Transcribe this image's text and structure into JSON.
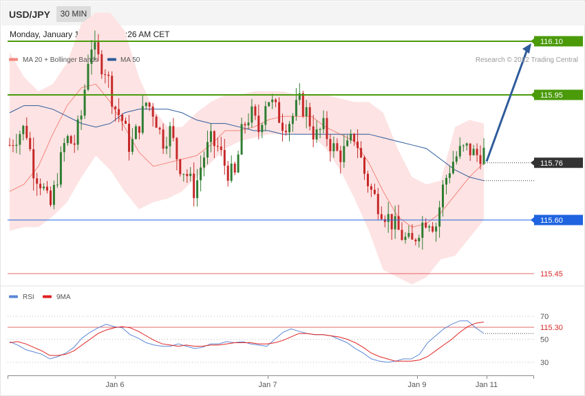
{
  "header": {
    "symbol": "USD/JPY",
    "timeframe": "30 MIN",
    "datetime": "Monday, January 10, 2022 9:19:26 AM CET"
  },
  "colors": {
    "ma20": "#f4857c",
    "band_fill": "#fde3e3",
    "ma50": "#2e5b9a",
    "candle_up": "#2e7d32",
    "candle_down": "#c62828",
    "resistance": "#4a9a0a",
    "current": "#333333",
    "support": "#1f63e0",
    "support_minor": "#d62a2a",
    "rsi": "#5b86d6",
    "rsi_ma": "#e02020",
    "arrow": "#2e5b9a"
  },
  "legend": {
    "ma20_label": "MA 20 + Bollinger Bands",
    "ma50_label": "MA 50",
    "credit": "Research © 2022 Trading Central"
  },
  "rsi_legend": {
    "rsi_label": "RSI",
    "ma_label": "9MA"
  },
  "chart_data": [
    {
      "type": "candlestick",
      "x_axis_labels": [
        "Jan 6",
        "Jan 7",
        "Jan 9",
        "Jan 11"
      ],
      "ylim": [
        115.24,
        116.34
      ],
      "levels": [
        {
          "value": 116.1,
          "label": "116.10",
          "kind": "resistance"
        },
        {
          "value": 115.95,
          "label": "115.95",
          "kind": "resistance"
        },
        {
          "value": 115.76,
          "label": "115.76",
          "kind": "current"
        },
        {
          "value": 115.6,
          "label": "115.60",
          "kind": "support"
        },
        {
          "value": 115.45,
          "label": "115.45",
          "kind": "support_minor"
        },
        {
          "value": 115.3,
          "label": "115.30",
          "kind": "support_minor"
        }
      ],
      "close_path": [
        115.81,
        115.84,
        115.86,
        115.74,
        115.7,
        115.63,
        115.73,
        115.83,
        115.81,
        115.9,
        116.1,
        116.05,
        116.02,
        115.92,
        115.88,
        115.8,
        115.86,
        115.93,
        115.9,
        115.82,
        115.85,
        115.76,
        115.73,
        115.68,
        115.77,
        115.82,
        115.8,
        115.74,
        115.72,
        115.86,
        115.9,
        115.85,
        115.95,
        115.91,
        115.87,
        115.88,
        115.93,
        115.9,
        115.83,
        115.86,
        115.81,
        115.78,
        115.8,
        115.84,
        115.74,
        115.68,
        115.64,
        115.61,
        115.58,
        115.55,
        115.53,
        115.58,
        115.61,
        115.58,
        115.7,
        115.76,
        115.79,
        115.8,
        115.78,
        115.79
      ],
      "ma20": [
        115.68,
        115.7,
        115.75,
        115.84,
        115.92,
        115.97,
        115.98,
        115.93,
        115.86,
        115.79,
        115.75,
        115.76,
        115.77,
        115.78,
        115.81,
        115.85,
        115.85,
        115.86,
        115.88,
        115.89,
        115.89,
        115.89,
        115.86,
        115.84,
        115.82,
        115.76,
        115.68,
        115.61,
        115.58,
        115.59,
        115.62,
        115.67,
        115.72,
        115.76
      ],
      "bb_upper": [
        116.07,
        116.0,
        115.96,
        115.98,
        116.04,
        116.15,
        116.18,
        116.18,
        116.13,
        116.0,
        115.91,
        115.86,
        115.86,
        115.9,
        115.93,
        115.95,
        115.95,
        115.96,
        115.96,
        115.96,
        115.95,
        115.95,
        115.95,
        115.94,
        115.93,
        115.93,
        115.9,
        115.8,
        115.72,
        115.7,
        115.71,
        115.86,
        115.88,
        115.87
      ],
      "bb_lower": [
        115.57,
        115.58,
        115.58,
        115.61,
        115.65,
        115.72,
        115.78,
        115.74,
        115.68,
        115.63,
        115.65,
        115.66,
        115.68,
        115.72,
        115.76,
        115.8,
        115.82,
        115.83,
        115.84,
        115.84,
        115.84,
        115.84,
        115.8,
        115.74,
        115.66,
        115.57,
        115.46,
        115.44,
        115.42,
        115.44,
        115.49,
        115.5,
        115.55,
        115.6
      ],
      "ma50": [
        115.9,
        115.92,
        115.92,
        115.91,
        115.89,
        115.87,
        115.86,
        115.87,
        115.9,
        115.91,
        115.91,
        115.91,
        115.9,
        115.88,
        115.87,
        115.87,
        115.86,
        115.85,
        115.85,
        115.84,
        115.84,
        115.84,
        115.84,
        115.84,
        115.84,
        115.84,
        115.83,
        115.82,
        115.81,
        115.8,
        115.77,
        115.74,
        115.72,
        115.71
      ]
    },
    {
      "type": "line",
      "title": "RSI",
      "ylim": [
        16,
        86
      ],
      "y_ticks": [
        30,
        50,
        70
      ],
      "series": [
        {
          "name": "RSI",
          "values": [
            48,
            45,
            41,
            39,
            37,
            33,
            35,
            38,
            43,
            51,
            56,
            60,
            63,
            61,
            60,
            54,
            51,
            47,
            45,
            44,
            44,
            46,
            44,
            42,
            43,
            46,
            46,
            48,
            47,
            48,
            46,
            45,
            44,
            50,
            56,
            59,
            57,
            55,
            54,
            54,
            53,
            50,
            47,
            42,
            38,
            33,
            31,
            30,
            31,
            33,
            33,
            37,
            47,
            53,
            59,
            63,
            66,
            66,
            60,
            55
          ]
        },
        {
          "name": "9MA",
          "values": [
            47,
            48,
            46,
            43,
            40,
            36,
            36,
            37,
            40,
            45,
            50,
            55,
            58,
            60,
            61,
            60,
            57,
            53,
            49,
            46,
            45,
            44,
            45,
            44,
            44,
            45,
            45,
            46,
            47,
            47,
            47,
            46,
            46,
            47,
            49,
            52,
            55,
            55,
            54,
            54,
            53,
            52,
            50,
            47,
            43,
            38,
            35,
            33,
            31,
            31,
            31,
            32,
            35,
            40,
            45,
            50,
            56,
            61,
            64,
            65
          ]
        }
      ]
    }
  ]
}
